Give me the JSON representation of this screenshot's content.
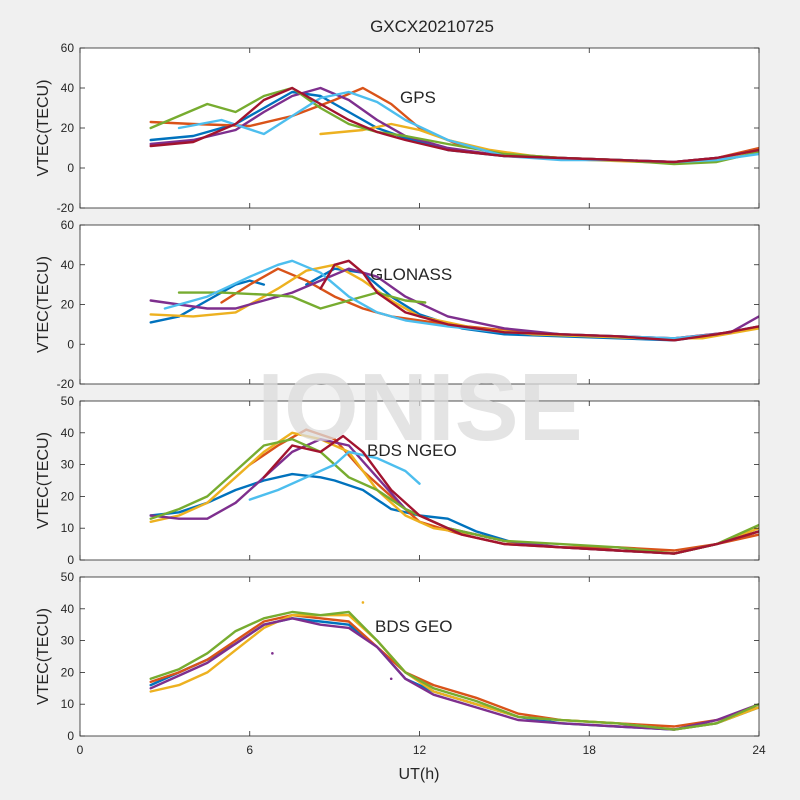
{
  "figure": {
    "title": "GXCX20210725",
    "watermark": "IONISE",
    "xlabel": "UT(h)"
  },
  "colors": {
    "background": "#f0f0f0",
    "axes_face": "#ffffff",
    "axes_edge": "#262626",
    "series_palette": [
      "#0072BD",
      "#D95319",
      "#EDB120",
      "#7E2F8E",
      "#77AC30",
      "#4DBEEE",
      "#A2142F"
    ]
  },
  "chart_data": [
    {
      "type": "line",
      "label": "GPS",
      "xlim": [
        0,
        24
      ],
      "xticks": [
        0,
        6,
        12,
        18,
        24
      ],
      "ylim": [
        -20,
        60
      ],
      "yticks": [
        -20,
        0,
        20,
        40,
        60
      ],
      "ylabel": "VTEC(TECU)",
      "series": [
        {
          "color": "#0072BD",
          "x": [
            2.5,
            4,
            5.5,
            6.5,
            7.5,
            8.5,
            9.5,
            10.5,
            11.5,
            13,
            15,
            17,
            19,
            21,
            22.5,
            24
          ],
          "y": [
            14,
            16,
            22,
            30,
            38,
            36,
            28,
            20,
            15,
            9,
            6,
            5,
            4,
            3,
            5,
            9
          ]
        },
        {
          "color": "#D95319",
          "x": [
            2.5,
            4,
            6,
            7.5,
            9,
            10,
            11,
            12,
            13.5,
            15,
            17,
            19,
            21,
            22.5,
            24
          ],
          "y": [
            23,
            22,
            21,
            26,
            34,
            40,
            32,
            20,
            11,
            7,
            5,
            4,
            3,
            5,
            10
          ]
        },
        {
          "color": "#EDB120",
          "x": [
            8.5,
            10,
            11,
            12,
            13,
            14.5,
            16,
            18,
            20,
            22,
            24
          ],
          "y": [
            17,
            19,
            22,
            19,
            14,
            9,
            6,
            4,
            3,
            3,
            8
          ]
        },
        {
          "color": "#7E2F8E",
          "x": [
            2.5,
            4,
            5.5,
            6.5,
            7.5,
            8.5,
            9.5,
            10.5,
            11.5,
            13,
            15,
            17,
            19,
            21,
            22.5,
            24
          ],
          "y": [
            12,
            14,
            19,
            28,
            36,
            40,
            34,
            24,
            16,
            10,
            6,
            5,
            4,
            3,
            5,
            9
          ]
        },
        {
          "color": "#77AC30",
          "x": [
            2.5,
            3.5,
            4.5,
            5.5,
            6.5,
            7.5,
            8.5,
            9.5,
            10.5,
            11.5,
            13,
            15,
            17,
            19,
            21,
            22.5,
            24
          ],
          "y": [
            20,
            26,
            32,
            28,
            36,
            40,
            30,
            22,
            18,
            16,
            12,
            7,
            5,
            4,
            2,
            3,
            8
          ]
        },
        {
          "color": "#4DBEEE",
          "x": [
            3.5,
            5,
            6.5,
            7.5,
            8.5,
            9.5,
            10.5,
            11.5,
            13,
            15,
            17,
            19,
            21,
            22.5,
            24
          ],
          "y": [
            20,
            24,
            17,
            26,
            35,
            38,
            33,
            24,
            14,
            6,
            4,
            4,
            3,
            4,
            7
          ]
        },
        {
          "color": "#A2142F",
          "x": [
            2.5,
            4,
            5.5,
            6.5,
            7.5,
            8.5,
            9.5,
            10.5,
            11.5,
            13,
            15,
            17,
            19,
            21,
            22.5,
            24
          ],
          "y": [
            11,
            13,
            22,
            34,
            40,
            32,
            24,
            18,
            14,
            9,
            6,
            5,
            4,
            3,
            5,
            9
          ]
        }
      ]
    },
    {
      "type": "line",
      "label": "GLONASS",
      "xlim": [
        0,
        24
      ],
      "xticks": [
        0,
        6,
        12,
        18,
        24
      ],
      "ylim": [
        -20,
        60
      ],
      "yticks": [
        -20,
        0,
        20,
        40,
        60
      ],
      "ylabel": "VTEC(TECU)",
      "series": [
        {
          "color": "#0072BD",
          "x": [
            2.5,
            3.5,
            4.5,
            5.5,
            6,
            6.5
          ],
          "y": [
            11,
            14,
            22,
            30,
            32,
            30
          ]
        },
        {
          "color": "#0072BD",
          "x": [
            8,
            9,
            10,
            11,
            12,
            13.5,
            15,
            17,
            19,
            21,
            22.5,
            24
          ],
          "y": [
            30,
            38,
            36,
            24,
            15,
            8,
            5,
            4,
            3,
            2,
            5,
            9
          ]
        },
        {
          "color": "#D95319",
          "x": [
            5,
            6,
            7,
            8,
            9,
            10,
            11,
            12,
            13,
            15,
            17,
            19,
            21,
            23,
            24
          ],
          "y": [
            21,
            30,
            38,
            32,
            24,
            18,
            14,
            12,
            10,
            7,
            5,
            4,
            3,
            6,
            9
          ]
        },
        {
          "color": "#EDB120",
          "x": [
            2.5,
            4,
            5.5,
            7,
            8,
            9,
            10,
            11,
            12,
            14,
            16,
            18,
            20,
            22,
            24
          ],
          "y": [
            15,
            14,
            16,
            28,
            37,
            40,
            32,
            22,
            14,
            8,
            5,
            4,
            3,
            3,
            8
          ]
        },
        {
          "color": "#7E2F8E",
          "x": [
            2.5,
            3.5,
            4.5,
            5.5,
            6.5,
            7.5,
            8.5,
            9.5,
            10.5,
            11.5,
            13,
            15,
            17,
            19,
            21,
            23,
            24
          ],
          "y": [
            22,
            20,
            18,
            18,
            22,
            26,
            32,
            38,
            34,
            24,
            14,
            8,
            5,
            4,
            3,
            6,
            14
          ]
        },
        {
          "color": "#77AC30",
          "x": [
            3.5,
            5,
            6.5,
            7.5,
            8.5,
            9.5,
            10.5,
            11.5,
            12.2
          ],
          "y": [
            26,
            26,
            25,
            24,
            18,
            22,
            26,
            22,
            21
          ]
        },
        {
          "color": "#4DBEEE",
          "x": [
            3,
            4.5,
            6,
            7,
            7.5,
            8.5,
            9.5,
            10.5,
            11.5,
            13,
            15,
            17,
            19,
            21,
            22.5
          ],
          "y": [
            18,
            24,
            34,
            40,
            42,
            36,
            24,
            16,
            12,
            9,
            6,
            5,
            4,
            3,
            5
          ]
        },
        {
          "color": "#A2142F",
          "x": [
            8.5,
            9,
            9.5,
            10,
            10.5,
            11.5,
            13,
            15,
            17,
            19,
            21,
            22.5,
            24
          ],
          "y": [
            28,
            40,
            42,
            36,
            26,
            16,
            10,
            6,
            5,
            4,
            2,
            5,
            9
          ]
        }
      ]
    },
    {
      "type": "line",
      "label": "BDS NGEO",
      "xlim": [
        0,
        24
      ],
      "xticks": [
        0,
        6,
        12,
        18,
        24
      ],
      "ylim": [
        0,
        50
      ],
      "yticks": [
        0,
        10,
        20,
        30,
        40,
        50
      ],
      "ylabel": "VTEC(TECU)",
      "series": [
        {
          "color": "#0072BD",
          "x": [
            2.5,
            3.5,
            4.5,
            5.5,
            6.5,
            7.5,
            8.5,
            9,
            10,
            11,
            12,
            13,
            14,
            15.5,
            17,
            19,
            21,
            22.5,
            24
          ],
          "y": [
            14,
            15,
            18,
            22,
            25,
            27,
            26,
            25,
            22,
            16,
            14,
            13,
            9,
            5,
            4,
            3,
            2,
            5,
            9
          ]
        },
        {
          "color": "#D95319",
          "x": [
            6,
            7,
            8,
            9,
            10,
            11,
            12,
            13.5,
            15,
            17,
            19,
            21,
            22.5,
            24
          ],
          "y": [
            30,
            36,
            41,
            38,
            28,
            20,
            12,
            8,
            5,
            4,
            4,
            3,
            5,
            8
          ]
        },
        {
          "color": "#EDB120",
          "x": [
            2.5,
            3.5,
            4.5,
            5.5,
            6.5,
            7.5,
            8.5,
            9.5,
            10.5,
            11.5,
            12.5,
            14,
            15.5,
            17,
            19,
            21,
            22.5,
            24
          ],
          "y": [
            12,
            14,
            18,
            26,
            34,
            40,
            38,
            34,
            22,
            14,
            10,
            8,
            5,
            4,
            3,
            2,
            5,
            10
          ]
        },
        {
          "color": "#7E2F8E",
          "x": [
            2.5,
            3.5,
            4.5,
            5.5,
            6.5,
            7.5,
            8.5,
            9.5,
            10.5,
            11.5,
            13,
            15,
            17,
            19,
            21,
            22.5,
            24
          ],
          "y": [
            14,
            13,
            13,
            18,
            26,
            34,
            38,
            36,
            26,
            16,
            10,
            6,
            4,
            3,
            2,
            5,
            9
          ]
        },
        {
          "color": "#77AC30",
          "x": [
            2.5,
            3.5,
            4.5,
            5.5,
            6.5,
            7.5,
            8.5,
            9.5,
            10.5,
            11.5,
            13,
            15,
            17,
            19,
            21,
            22.5,
            24
          ],
          "y": [
            13,
            16,
            20,
            28,
            36,
            38,
            34,
            26,
            22,
            16,
            10,
            6,
            5,
            4,
            2,
            5,
            11
          ]
        },
        {
          "color": "#4DBEEE",
          "x": [
            6,
            7,
            8,
            9,
            9.5,
            10.5,
            11.5,
            12
          ],
          "y": [
            19,
            22,
            26,
            30,
            34,
            32,
            28,
            24
          ]
        },
        {
          "color": "#A2142F",
          "x": [
            6.5,
            7.5,
            8.5,
            9.3,
            10,
            11,
            12,
            13.5,
            15,
            17,
            19,
            21,
            22.5,
            24
          ],
          "y": [
            26,
            36,
            34,
            39,
            34,
            22,
            14,
            8,
            5,
            4,
            3,
            2,
            5,
            9
          ]
        }
      ]
    },
    {
      "type": "line",
      "label": "BDS GEO",
      "xlim": [
        0,
        24
      ],
      "xticks": [
        0,
        6,
        12,
        18,
        24
      ],
      "ylim": [
        0,
        50
      ],
      "yticks": [
        0,
        10,
        20,
        30,
        40,
        50
      ],
      "ylabel": "VTEC(TECU)",
      "series": [
        {
          "color": "#0072BD",
          "x": [
            2.5,
            3.5,
            4.5,
            5.5,
            6.5,
            7.5,
            8.5,
            9.5,
            10.5,
            11.5,
            12.5,
            14,
            15.5,
            17,
            19,
            21,
            22.5,
            24
          ],
          "y": [
            16,
            20,
            24,
            29,
            35,
            37,
            36,
            35,
            28,
            18,
            14,
            10,
            6,
            4,
            3,
            2,
            4,
            9
          ]
        },
        {
          "color": "#D95319",
          "x": [
            2.5,
            3.5,
            4.5,
            5.5,
            6.5,
            7.5,
            8.5,
            9.5,
            10.5,
            11.5,
            12.5,
            14,
            15.5,
            17,
            19,
            21,
            22.5,
            24
          ],
          "y": [
            17,
            20,
            24,
            30,
            36,
            38,
            37,
            36,
            28,
            20,
            16,
            12,
            7,
            5,
            4,
            3,
            5,
            9
          ]
        },
        {
          "color": "#EDB120",
          "x": [
            2.5,
            3.5,
            4.5,
            5.5,
            6.5,
            7.5,
            8.5,
            9.5,
            10.5,
            11.5,
            12.5,
            14,
            15.5,
            17,
            19,
            21,
            22.5,
            24
          ],
          "y": [
            14,
            16,
            20,
            27,
            34,
            38,
            38,
            38,
            30,
            20,
            14,
            10,
            6,
            5,
            4,
            2,
            4,
            9
          ]
        },
        {
          "color": "#7E2F8E",
          "x": [
            2.5,
            3.5,
            4.5,
            5.5,
            6.5,
            7.5,
            8.5,
            9.5,
            10.5,
            11.5,
            12.5,
            14,
            15.5,
            17,
            19,
            21,
            22.5,
            24
          ],
          "y": [
            15,
            19,
            23,
            29,
            35,
            37,
            35,
            34,
            28,
            18,
            13,
            9,
            5,
            4,
            3,
            2,
            5,
            10
          ]
        },
        {
          "color": "#77AC30",
          "x": [
            2.5,
            3.5,
            4.5,
            5.5,
            6.5,
            7.5,
            8.5,
            9.5,
            10.5,
            11.5,
            12.5,
            14,
            15.5,
            17,
            19,
            21,
            22.5,
            24
          ],
          "y": [
            18,
            21,
            26,
            33,
            37,
            39,
            38,
            39,
            30,
            20,
            15,
            11,
            6,
            5,
            4,
            2,
            4,
            10
          ]
        }
      ],
      "outlier_points": [
        {
          "x": 6.8,
          "y": 26,
          "color": "#7E2F8E"
        },
        {
          "x": 10.0,
          "y": 42,
          "color": "#EDB120"
        },
        {
          "x": 11.0,
          "y": 18,
          "color": "#7E2F8E"
        }
      ]
    }
  ]
}
